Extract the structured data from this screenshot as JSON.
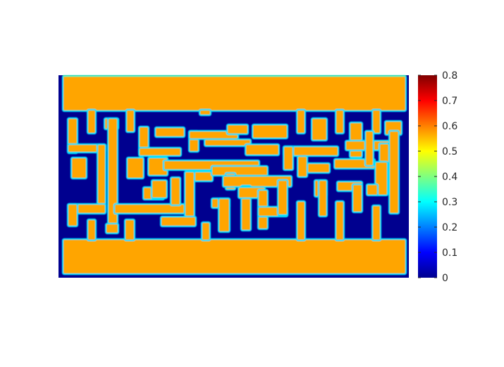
{
  "chart_data": {
    "type": "heatmap",
    "title": "",
    "xlabel": "",
    "ylabel": "",
    "colormap": "jet",
    "colorbar": {
      "range": [
        0,
        0.8
      ],
      "ticks": [
        0,
        0.1,
        0.2,
        0.3,
        0.4,
        0.5,
        0.6,
        0.7,
        0.8
      ],
      "tick_labels": [
        "0",
        "0.1",
        "0.2",
        "0.3",
        "0.4",
        "0.5",
        "0.6",
        "0.7",
        "0.8"
      ],
      "position": "right"
    },
    "background_value": 0.0,
    "feature_value": 0.6,
    "edge_value": 0.35,
    "grid": false,
    "axes_ticks": false,
    "colors": {
      "background": "#00008f",
      "feature": "#ffa500",
      "edge": "#00e0ff",
      "top_edge": "#3fffbf"
    }
  }
}
